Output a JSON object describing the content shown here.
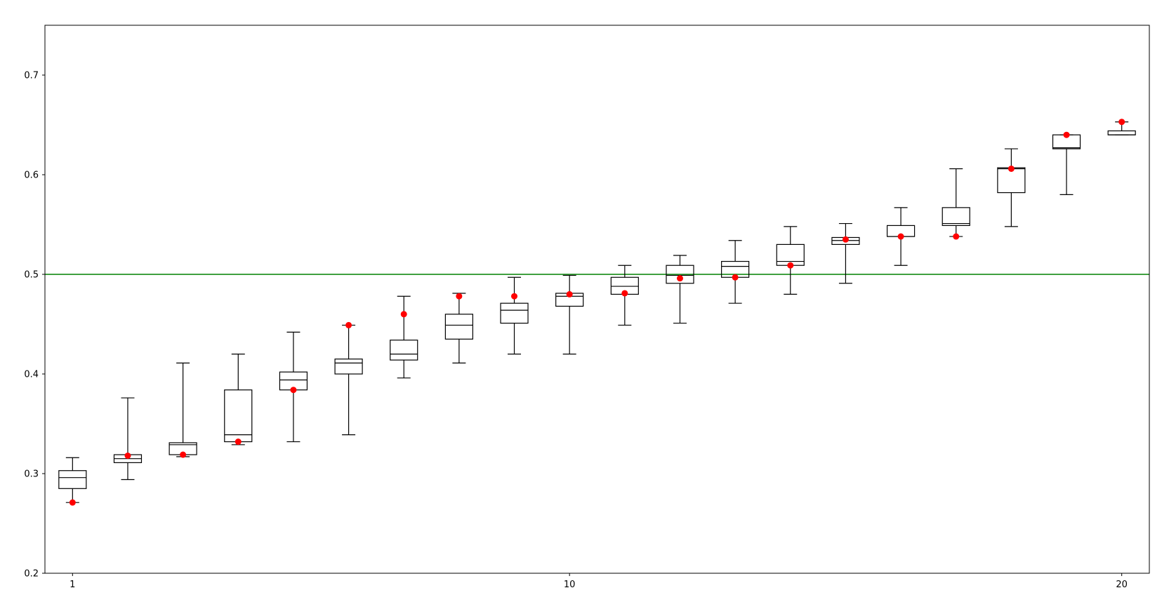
{
  "chart_data": {
    "type": "box",
    "title": "",
    "xlabel": "",
    "ylabel": "",
    "xlim": [
      0.5,
      20.5
    ],
    "ylim": [
      0.2,
      0.75
    ],
    "x_ticks": [
      {
        "value": 1,
        "label": "1"
      },
      {
        "value": 10,
        "label": "10"
      },
      {
        "value": 20,
        "label": "20"
      }
    ],
    "y_ticks": [
      {
        "value": 0.2,
        "label": "0.2"
      },
      {
        "value": 0.3,
        "label": "0.3"
      },
      {
        "value": 0.4,
        "label": "0.4"
      },
      {
        "value": 0.5,
        "label": "0.5"
      },
      {
        "value": 0.6,
        "label": "0.6"
      },
      {
        "value": 0.7,
        "label": "0.7"
      }
    ],
    "reference_line": {
      "y": 0.5,
      "color": "#008000"
    },
    "box_color": "#000000",
    "point_color": "#ff0000",
    "grid": false,
    "boxes": [
      {
        "x": 1,
        "whisker_low": 0.271,
        "q1": 0.285,
        "median": 0.296,
        "q3": 0.303,
        "whisker_high": 0.316,
        "point": 0.271
      },
      {
        "x": 2,
        "whisker_low": 0.294,
        "q1": 0.311,
        "median": 0.315,
        "q3": 0.319,
        "whisker_high": 0.376,
        "point": 0.318
      },
      {
        "x": 3,
        "whisker_low": 0.317,
        "q1": 0.319,
        "median": 0.329,
        "q3": 0.331,
        "whisker_high": 0.411,
        "point": 0.319
      },
      {
        "x": 4,
        "whisker_low": 0.329,
        "q1": 0.332,
        "median": 0.339,
        "q3": 0.384,
        "whisker_high": 0.42,
        "point": 0.332
      },
      {
        "x": 5,
        "whisker_low": 0.332,
        "q1": 0.384,
        "median": 0.394,
        "q3": 0.402,
        "whisker_high": 0.442,
        "point": 0.384
      },
      {
        "x": 6,
        "whisker_low": 0.339,
        "q1": 0.4,
        "median": 0.411,
        "q3": 0.415,
        "whisker_high": 0.449,
        "point": 0.449
      },
      {
        "x": 7,
        "whisker_low": 0.396,
        "q1": 0.414,
        "median": 0.42,
        "q3": 0.434,
        "whisker_high": 0.478,
        "point": 0.46
      },
      {
        "x": 8,
        "whisker_low": 0.411,
        "q1": 0.435,
        "median": 0.449,
        "q3": 0.46,
        "whisker_high": 0.481,
        "point": 0.478
      },
      {
        "x": 9,
        "whisker_low": 0.42,
        "q1": 0.451,
        "median": 0.464,
        "q3": 0.471,
        "whisker_high": 0.497,
        "point": 0.478
      },
      {
        "x": 10,
        "whisker_low": 0.42,
        "q1": 0.468,
        "median": 0.478,
        "q3": 0.481,
        "whisker_high": 0.499,
        "point": 0.48
      },
      {
        "x": 11,
        "whisker_low": 0.449,
        "q1": 0.48,
        "median": 0.488,
        "q3": 0.497,
        "whisker_high": 0.509,
        "point": 0.481
      },
      {
        "x": 12,
        "whisker_low": 0.451,
        "q1": 0.491,
        "median": 0.499,
        "q3": 0.509,
        "whisker_high": 0.519,
        "point": 0.496
      },
      {
        "x": 13,
        "whisker_low": 0.471,
        "q1": 0.497,
        "median": 0.508,
        "q3": 0.513,
        "whisker_high": 0.534,
        "point": 0.497
      },
      {
        "x": 14,
        "whisker_low": 0.48,
        "q1": 0.509,
        "median": 0.513,
        "q3": 0.53,
        "whisker_high": 0.548,
        "point": 0.509
      },
      {
        "x": 15,
        "whisker_low": 0.491,
        "q1": 0.53,
        "median": 0.534,
        "q3": 0.537,
        "whisker_high": 0.551,
        "point": 0.535
      },
      {
        "x": 16,
        "whisker_low": 0.509,
        "q1": 0.538,
        "median": 0.538,
        "q3": 0.549,
        "whisker_high": 0.567,
        "point": 0.538
      },
      {
        "x": 17,
        "whisker_low": 0.538,
        "q1": 0.549,
        "median": 0.551,
        "q3": 0.567,
        "whisker_high": 0.606,
        "point": 0.538
      },
      {
        "x": 18,
        "whisker_low": 0.548,
        "q1": 0.582,
        "median": 0.606,
        "q3": 0.607,
        "whisker_high": 0.626,
        "point": 0.606
      },
      {
        "x": 19,
        "whisker_low": 0.58,
        "q1": 0.626,
        "median": 0.627,
        "q3": 0.64,
        "whisker_high": 0.64,
        "point": 0.64
      },
      {
        "x": 20,
        "whisker_low": 0.64,
        "q1": 0.64,
        "median": 0.64,
        "q3": 0.644,
        "whisker_high": 0.653,
        "point": 0.653
      }
    ]
  }
}
